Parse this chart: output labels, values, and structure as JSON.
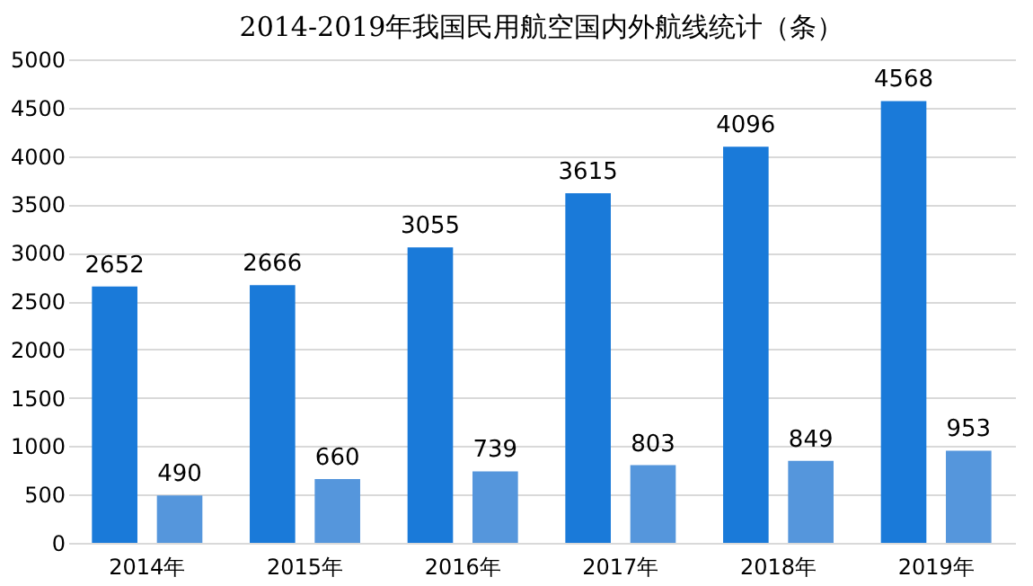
{
  "chart_data": {
    "type": "bar",
    "title": "2014-2019年我国民用航空国内外航线统计（条）",
    "categories": [
      "2014年",
      "2015年",
      "2016年",
      "2017年",
      "2018年",
      "2019年"
    ],
    "series": [
      {
        "color": "#1a7ad9",
        "values": [
          2652,
          2666,
          3055,
          3615,
          4096,
          4568
        ]
      },
      {
        "color": "#5596dc",
        "values": [
          490,
          660,
          739,
          803,
          849,
          953
        ]
      }
    ],
    "ylim": [
      0,
      5000
    ],
    "yticks": [
      0,
      500,
      1000,
      1500,
      2000,
      2500,
      3000,
      3500,
      4000,
      4500,
      5000
    ],
    "grid": "y",
    "data_labels": true
  }
}
